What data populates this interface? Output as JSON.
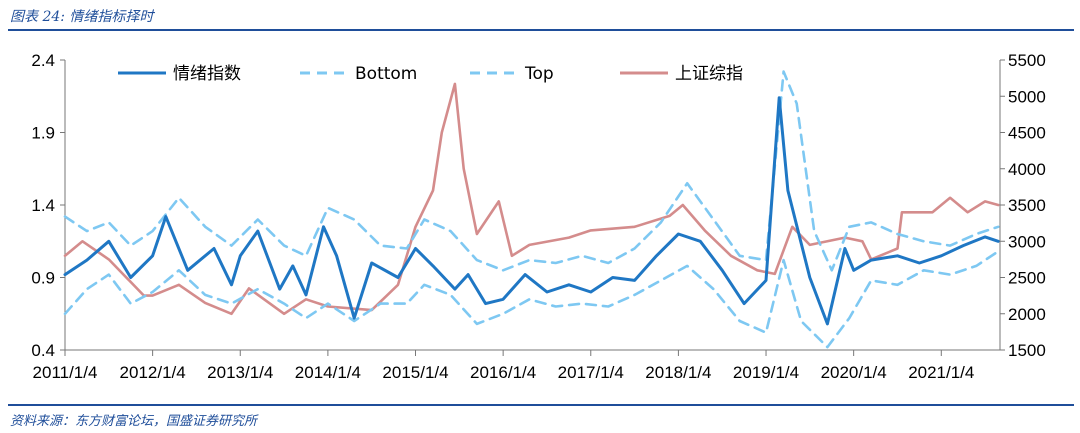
{
  "header": {
    "figure_title": "图表 24: 情绪指标择时"
  },
  "footer": {
    "source": "资料来源：东方财富论坛，国盛证券研究所"
  },
  "colors": {
    "sentiment": "#1F77C4",
    "band": "#7EC8F2",
    "index": "#D48C8C",
    "rule": "#1F4E9A"
  },
  "chart_data": {
    "type": "line",
    "title": "",
    "x_categories": [
      "2011/1/4",
      "2012/1/4",
      "2013/1/4",
      "2014/1/4",
      "2015/1/4",
      "2016/1/4",
      "2017/1/4",
      "2018/1/4",
      "2019/1/4",
      "2020/1/4",
      "2021/1/4"
    ],
    "xlim": [
      "2011/1/4",
      "2021/9/1"
    ],
    "left_axis": {
      "ylim": [
        0.4,
        2.4
      ],
      "ticks": [
        0.4,
        0.9,
        1.4,
        1.9,
        2.4
      ],
      "tick_labels": [
        "0.4",
        "0.9",
        "1.4",
        "1.9",
        "2.4"
      ]
    },
    "right_axis": {
      "ylim": [
        1500,
        5500
      ],
      "ticks": [
        1500,
        2000,
        2500,
        3000,
        3500,
        4000,
        4500,
        5000,
        5500
      ],
      "tick_labels": [
        "1500",
        "2000",
        "2500",
        "3000",
        "3500",
        "4000",
        "4500",
        "5000",
        "5500"
      ]
    },
    "legend": {
      "placement": "top",
      "entries": [
        "情绪指数",
        "Bottom",
        "Top",
        "上证综指"
      ]
    },
    "grid": false,
    "series": [
      {
        "name": "情绪指数",
        "axis": "left",
        "style": "solid",
        "points": [
          [
            2011.0,
            0.92
          ],
          [
            2011.25,
            1.02
          ],
          [
            2011.5,
            1.15
          ],
          [
            2011.75,
            0.9
          ],
          [
            2012.0,
            1.05
          ],
          [
            2012.15,
            1.32
          ],
          [
            2012.4,
            0.95
          ],
          [
            2012.7,
            1.1
          ],
          [
            2012.9,
            0.85
          ],
          [
            2013.0,
            1.05
          ],
          [
            2013.2,
            1.22
          ],
          [
            2013.45,
            0.82
          ],
          [
            2013.6,
            0.98
          ],
          [
            2013.75,
            0.78
          ],
          [
            2013.95,
            1.25
          ],
          [
            2014.1,
            1.05
          ],
          [
            2014.3,
            0.62
          ],
          [
            2014.5,
            1.0
          ],
          [
            2014.8,
            0.9
          ],
          [
            2015.0,
            1.1
          ],
          [
            2015.2,
            0.98
          ],
          [
            2015.45,
            0.82
          ],
          [
            2015.6,
            0.92
          ],
          [
            2015.8,
            0.72
          ],
          [
            2016.0,
            0.75
          ],
          [
            2016.25,
            0.92
          ],
          [
            2016.5,
            0.8
          ],
          [
            2016.75,
            0.85
          ],
          [
            2017.0,
            0.8
          ],
          [
            2017.25,
            0.9
          ],
          [
            2017.5,
            0.88
          ],
          [
            2017.75,
            1.05
          ],
          [
            2018.0,
            1.2
          ],
          [
            2018.25,
            1.15
          ],
          [
            2018.5,
            0.95
          ],
          [
            2018.75,
            0.72
          ],
          [
            2019.0,
            0.88
          ],
          [
            2019.15,
            2.14
          ],
          [
            2019.25,
            1.5
          ],
          [
            2019.5,
            0.9
          ],
          [
            2019.7,
            0.58
          ],
          [
            2019.9,
            1.1
          ],
          [
            2020.0,
            0.95
          ],
          [
            2020.2,
            1.02
          ],
          [
            2020.5,
            1.05
          ],
          [
            2020.75,
            1.0
          ],
          [
            2021.0,
            1.05
          ],
          [
            2021.25,
            1.12
          ],
          [
            2021.5,
            1.18
          ],
          [
            2021.65,
            1.15
          ]
        ]
      },
      {
        "name": "Bottom",
        "axis": "left",
        "style": "dashed",
        "points": [
          [
            2011.0,
            0.65
          ],
          [
            2011.25,
            0.82
          ],
          [
            2011.5,
            0.92
          ],
          [
            2011.75,
            0.72
          ],
          [
            2012.0,
            0.8
          ],
          [
            2012.3,
            0.95
          ],
          [
            2012.6,
            0.78
          ],
          [
            2012.9,
            0.72
          ],
          [
            2013.2,
            0.82
          ],
          [
            2013.5,
            0.72
          ],
          [
            2013.75,
            0.62
          ],
          [
            2014.0,
            0.72
          ],
          [
            2014.3,
            0.6
          ],
          [
            2014.6,
            0.72
          ],
          [
            2014.9,
            0.72
          ],
          [
            2015.1,
            0.85
          ],
          [
            2015.4,
            0.78
          ],
          [
            2015.7,
            0.58
          ],
          [
            2016.0,
            0.65
          ],
          [
            2016.3,
            0.75
          ],
          [
            2016.6,
            0.7
          ],
          [
            2016.9,
            0.72
          ],
          [
            2017.2,
            0.7
          ],
          [
            2017.5,
            0.78
          ],
          [
            2017.8,
            0.88
          ],
          [
            2018.1,
            0.98
          ],
          [
            2018.4,
            0.82
          ],
          [
            2018.7,
            0.6
          ],
          [
            2019.0,
            0.52
          ],
          [
            2019.2,
            1.02
          ],
          [
            2019.4,
            0.6
          ],
          [
            2019.7,
            0.42
          ],
          [
            2019.95,
            0.62
          ],
          [
            2020.2,
            0.88
          ],
          [
            2020.5,
            0.85
          ],
          [
            2020.8,
            0.95
          ],
          [
            2021.1,
            0.92
          ],
          [
            2021.4,
            0.98
          ],
          [
            2021.65,
            1.08
          ]
        ]
      },
      {
        "name": "Top",
        "axis": "left",
        "style": "dashed",
        "points": [
          [
            2011.0,
            1.32
          ],
          [
            2011.25,
            1.22
          ],
          [
            2011.5,
            1.28
          ],
          [
            2011.75,
            1.12
          ],
          [
            2012.0,
            1.22
          ],
          [
            2012.3,
            1.45
          ],
          [
            2012.6,
            1.25
          ],
          [
            2012.9,
            1.12
          ],
          [
            2013.2,
            1.3
          ],
          [
            2013.5,
            1.12
          ],
          [
            2013.75,
            1.05
          ],
          [
            2014.0,
            1.38
          ],
          [
            2014.3,
            1.3
          ],
          [
            2014.6,
            1.12
          ],
          [
            2014.9,
            1.1
          ],
          [
            2015.1,
            1.3
          ],
          [
            2015.4,
            1.22
          ],
          [
            2015.7,
            1.02
          ],
          [
            2016.0,
            0.95
          ],
          [
            2016.3,
            1.02
          ],
          [
            2016.6,
            1.0
          ],
          [
            2016.9,
            1.05
          ],
          [
            2017.2,
            1.0
          ],
          [
            2017.5,
            1.1
          ],
          [
            2017.8,
            1.28
          ],
          [
            2018.1,
            1.55
          ],
          [
            2018.4,
            1.3
          ],
          [
            2018.7,
            1.05
          ],
          [
            2019.0,
            1.02
          ],
          [
            2019.2,
            2.32
          ],
          [
            2019.35,
            2.1
          ],
          [
            2019.55,
            1.22
          ],
          [
            2019.75,
            0.95
          ],
          [
            2019.95,
            1.25
          ],
          [
            2020.2,
            1.28
          ],
          [
            2020.5,
            1.2
          ],
          [
            2020.8,
            1.15
          ],
          [
            2021.1,
            1.12
          ],
          [
            2021.4,
            1.2
          ],
          [
            2021.65,
            1.25
          ]
        ]
      },
      {
        "name": "上证综指",
        "axis": "right",
        "style": "solid",
        "points": [
          [
            2011.0,
            2800
          ],
          [
            2011.2,
            3000
          ],
          [
            2011.5,
            2750
          ],
          [
            2011.9,
            2250
          ],
          [
            2012.0,
            2250
          ],
          [
            2012.3,
            2400
          ],
          [
            2012.6,
            2150
          ],
          [
            2012.9,
            2000
          ],
          [
            2013.1,
            2350
          ],
          [
            2013.5,
            2000
          ],
          [
            2013.75,
            2200
          ],
          [
            2014.0,
            2100
          ],
          [
            2014.5,
            2050
          ],
          [
            2014.8,
            2400
          ],
          [
            2015.0,
            3200
          ],
          [
            2015.2,
            3700
          ],
          [
            2015.3,
            4500
          ],
          [
            2015.45,
            5170
          ],
          [
            2015.55,
            4000
          ],
          [
            2015.7,
            3100
          ],
          [
            2015.95,
            3550
          ],
          [
            2016.1,
            2800
          ],
          [
            2016.3,
            2950
          ],
          [
            2016.75,
            3050
          ],
          [
            2017.0,
            3150
          ],
          [
            2017.5,
            3200
          ],
          [
            2017.9,
            3350
          ],
          [
            2018.05,
            3500
          ],
          [
            2018.3,
            3150
          ],
          [
            2018.6,
            2800
          ],
          [
            2018.9,
            2600
          ],
          [
            2019.1,
            2550
          ],
          [
            2019.3,
            3200
          ],
          [
            2019.5,
            2950
          ],
          [
            2019.9,
            3050
          ],
          [
            2020.1,
            3000
          ],
          [
            2020.2,
            2750
          ],
          [
            2020.5,
            2900
          ],
          [
            2020.55,
            3400
          ],
          [
            2020.9,
            3400
          ],
          [
            2021.1,
            3600
          ],
          [
            2021.3,
            3400
          ],
          [
            2021.5,
            3550
          ],
          [
            2021.65,
            3500
          ]
        ]
      }
    ]
  }
}
